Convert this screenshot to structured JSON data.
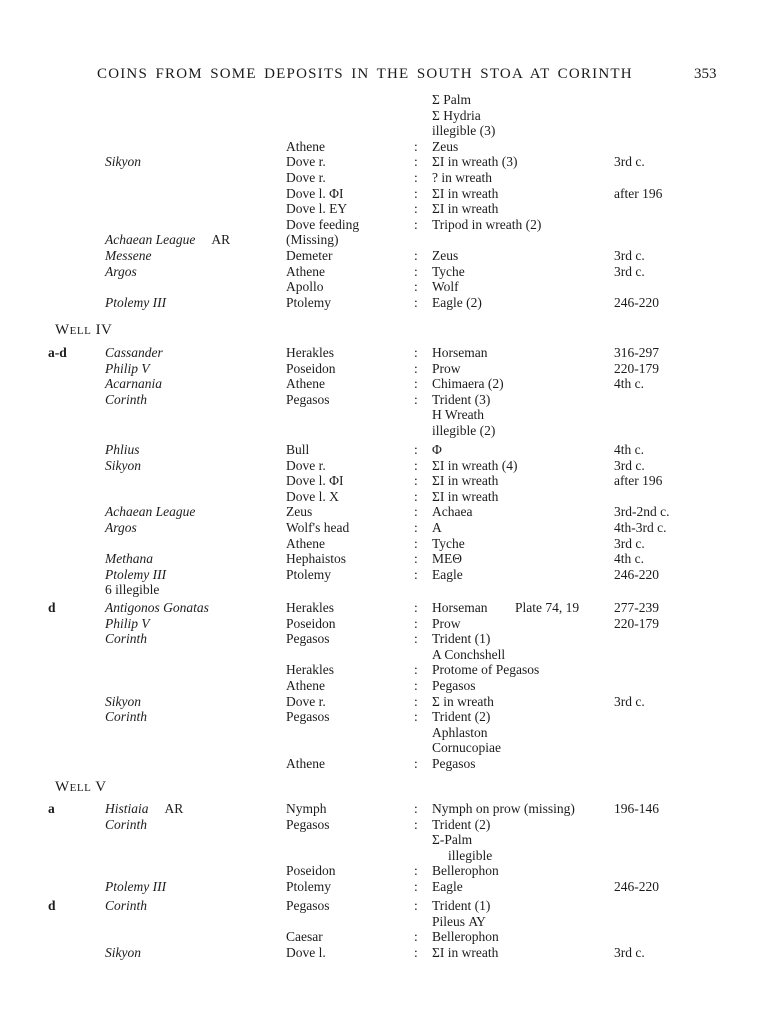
{
  "page": {
    "title": "COINS FROM SOME DEPOSITS IN THE SOUTH STOA AT CORINTH",
    "page_number": "353"
  },
  "table": {
    "segments": [
      {
        "type": "block",
        "rows": [
          {
            "r": "Σ Palm"
          },
          {
            "r": "Σ Hydria"
          },
          {
            "r": "illegible (3)"
          },
          {
            "o": "Athene",
            "colon": true,
            "r": "Zeus"
          },
          {
            "n": "Sikyon",
            "o": "Dove r.",
            "colon": true,
            "r": "ΣΙ in wreath (3)",
            "d": "3rd c."
          },
          {
            "o": "Dove r.",
            "colon": true,
            "r": "? in wreath"
          },
          {
            "o": "Dove l. ΦΙ",
            "colon": true,
            "r": "ΣΙ in wreath",
            "d": "after 196"
          },
          {
            "o": "Dove l. ΕΥ",
            "colon": true,
            "r": "ΣΙ in wreath"
          },
          {
            "o": "Dove feeding",
            "colon": true,
            "r": "Tripod in wreath (2)"
          },
          {
            "n": "Achaean League",
            "metal": "AR",
            "o": "(Missing)"
          },
          {
            "n": "Messene",
            "o": "Demeter",
            "colon": true,
            "r": "Zeus",
            "d": "3rd c."
          },
          {
            "n": "Argos",
            "o": "Athene",
            "colon": true,
            "r": "Tyche",
            "d": "3rd c."
          },
          {
            "o": "Apollo",
            "colon": true,
            "r": "Wolf"
          },
          {
            "n": "Ptolemy III",
            "o": "Ptolemy",
            "colon": true,
            "r": "Eagle (2)",
            "d": "246-220"
          }
        ]
      },
      {
        "type": "heading",
        "text": "Well IV"
      },
      {
        "type": "block",
        "rows": [
          {
            "m": "a-d",
            "n": "Cassander",
            "o": "Herakles",
            "colon": true,
            "r": "Horseman",
            "d": "316-297"
          },
          {
            "n": "Philip V",
            "o": "Poseidon",
            "colon": true,
            "r": "Prow",
            "d": "220-179"
          },
          {
            "n": "Acarnania",
            "o": "Athene",
            "colon": true,
            "r": "Chimaera (2)",
            "d": "4th c."
          },
          {
            "n": "Corinth",
            "o": "Pegasos",
            "colon": true,
            "r": "Trident (3)"
          },
          {
            "r": "H Wreath"
          },
          {
            "r": "illegible (2)"
          }
        ]
      },
      {
        "type": "block",
        "rows": [
          {
            "n": "Phlius",
            "o": "Bull",
            "colon": true,
            "r": "Φ",
            "d": "4th c."
          },
          {
            "n": "Sikyon",
            "o": "Dove r.",
            "colon": true,
            "r": "ΣΙ in wreath (4)",
            "d": "3rd c."
          },
          {
            "o": "Dove l. ΦΙ",
            "colon": true,
            "r": "ΣΙ in wreath",
            "d": "after 196"
          },
          {
            "o": "Dove l. Χ",
            "colon": true,
            "r": "ΣΙ in wreath"
          },
          {
            "n": "Achaean League",
            "o": "Zeus",
            "colon": true,
            "r": "Achaea",
            "d": "3rd-2nd c."
          },
          {
            "n": "Argos",
            "o": "Wolf's head",
            "colon": true,
            "r": "A",
            "d": "4th-3rd c."
          },
          {
            "o": "Athene",
            "colon": true,
            "r": "Tyche",
            "d": "3rd c."
          },
          {
            "n": "Methana",
            "o": "Hephaistos",
            "colon": true,
            "r": "ΜΕΘ",
            "d": "4th c."
          },
          {
            "n": "Ptolemy III",
            "o": "Ptolemy",
            "colon": true,
            "r": "Eagle",
            "d": "246-220"
          },
          {
            "np": "6 illegible"
          }
        ]
      },
      {
        "type": "block",
        "rows": [
          {
            "m": "d",
            "n": "Antigonos Gonatas",
            "o": "Herakles",
            "colon": true,
            "r": "Horseman",
            "p": "Plate 74, 19",
            "d": "277-239"
          },
          {
            "n": "Philip V",
            "o": "Poseidon",
            "colon": true,
            "r": "Prow",
            "d": "220-179"
          },
          {
            "n": "Corinth",
            "o": "Pegasos",
            "colon": true,
            "r": "Trident (1)"
          },
          {
            "r": "A Conchshell"
          },
          {
            "o": "Herakles",
            "colon": true,
            "r": "Protome of Pegasos"
          },
          {
            "o": "Athene",
            "colon": true,
            "r": "Pegasos"
          },
          {
            "n": "Sikyon",
            "o": "Dove r.",
            "colon": true,
            "r": "Σ in wreath",
            "d": "3rd c."
          },
          {
            "n": "Corinth",
            "o": "Pegasos",
            "colon": true,
            "r": "Trident (2)"
          },
          {
            "r": "Aphlaston"
          },
          {
            "r": "Cornucopiae"
          },
          {
            "o": "Athene",
            "colon": true,
            "r": "Pegasos"
          }
        ]
      },
      {
        "type": "heading",
        "text": "Well V"
      },
      {
        "type": "block",
        "rows": [
          {
            "m": "a",
            "n": "Histiaia",
            "metal": "AR",
            "o": "Nymph",
            "colon": true,
            "r": "Nymph on prow (missing)",
            "d": "196-146"
          },
          {
            "n": "Corinth",
            "o": "Pegasos",
            "colon": true,
            "r": "Trident (2)"
          },
          {
            "r": "Σ-Palm"
          },
          {
            "r": "illegible",
            "ind": true
          },
          {
            "o": "Poseidon",
            "colon": true,
            "r": "Bellerophon"
          },
          {
            "n": "Ptolemy III",
            "o": "Ptolemy",
            "colon": true,
            "r": "Eagle",
            "d": "246-220"
          }
        ]
      },
      {
        "type": "block",
        "rows": [
          {
            "m": "d",
            "n": "Corinth",
            "o": "Pegasos",
            "colon": true,
            "r": "Trident (1)"
          },
          {
            "r": "Pileus ΑΥ"
          },
          {
            "o": "Caesar",
            "colon": true,
            "r": "Bellerophon"
          }
        ]
      },
      {
        "type": "block",
        "rows": [
          {
            "n": "Sikyon",
            "o": "Dove l.",
            "colon": true,
            "r": "ΣΙ in wreath",
            "d": "3rd c."
          }
        ]
      }
    ]
  }
}
